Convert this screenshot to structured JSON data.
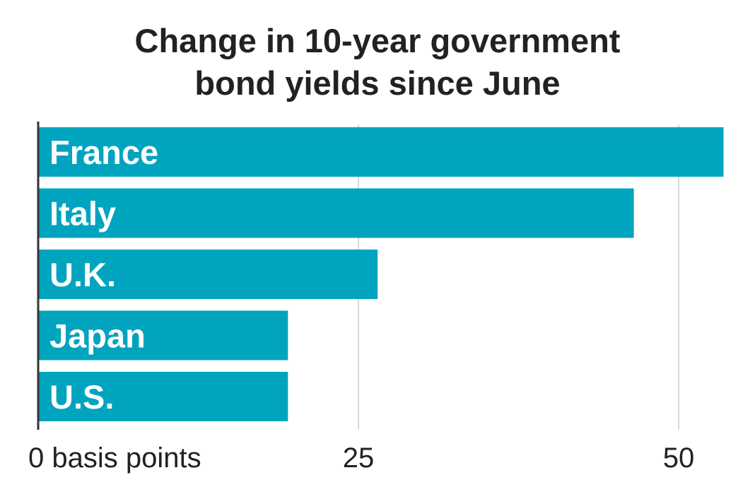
{
  "chart_data": {
    "type": "bar",
    "orientation": "horizontal",
    "title": "Change in 10-year government\nbond yields since June",
    "categories": [
      "France",
      "Italy",
      "U.K.",
      "Japan",
      "U.S."
    ],
    "values": [
      53.5,
      46.5,
      26.5,
      19.5,
      19.5
    ],
    "xlim": [
      0,
      50
    ],
    "xticks": [
      0,
      25,
      50
    ],
    "xtick_labels": [
      "0 basis points",
      "25",
      "50"
    ],
    "grid": true,
    "bar_color": "#00a4bf"
  }
}
